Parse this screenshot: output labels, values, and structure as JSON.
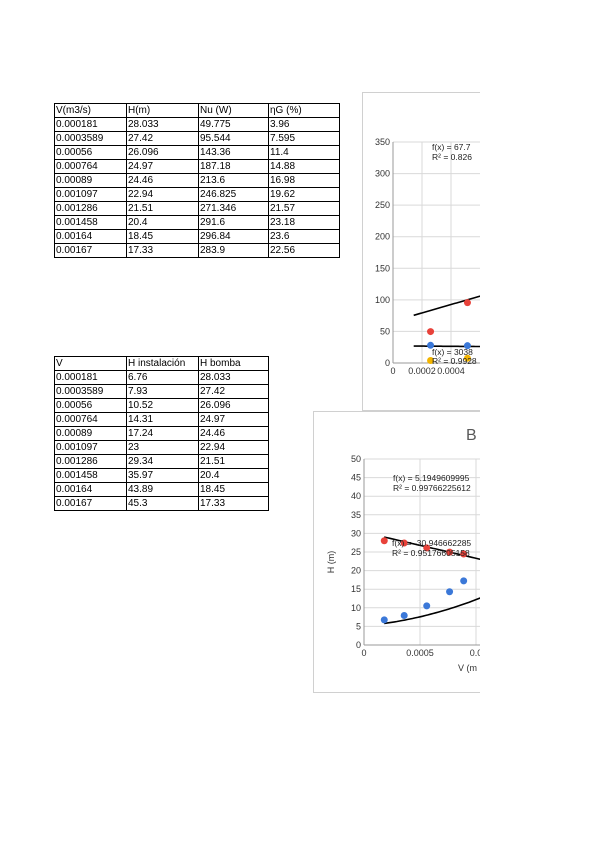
{
  "table_power": {
    "headers": [
      "V(m3/s)",
      "H(m)",
      "Nu (W)",
      "ηG (%)"
    ],
    "rows": [
      [
        "0.000181",
        "28.033",
        "49.775",
        "3.96"
      ],
      [
        "0.0003589",
        "27.42",
        "95.544",
        "7.595"
      ],
      [
        "0.00056",
        "26.096",
        "143.36",
        "11.4"
      ],
      [
        "0.000764",
        "24.97",
        "187.18",
        "14.88"
      ],
      [
        "0.00089",
        "24.46",
        "213.6",
        "16.98"
      ],
      [
        "0.001097",
        "22.94",
        "246.825",
        "19.62"
      ],
      [
        "0.001286",
        "21.51",
        "271.346",
        "21.57"
      ],
      [
        "0.001458",
        "20.4",
        "291.6",
        "23.18"
      ],
      [
        "0.00164",
        "18.45",
        "296.84",
        "23.6"
      ],
      [
        "0.00167",
        "17.33",
        "283.9",
        "22.56"
      ]
    ]
  },
  "table_heads": {
    "headers": [
      "V",
      "H instalación",
      "H bomba"
    ],
    "rows": [
      [
        "0.000181",
        "6.76",
        "28.033"
      ],
      [
        "0.0003589",
        "7.93",
        "27.42"
      ],
      [
        "0.00056",
        "10.52",
        "26.096"
      ],
      [
        "0.000764",
        "14.31",
        "24.97"
      ],
      [
        "0.00089",
        "17.24",
        "24.46"
      ],
      [
        "0.001097",
        "23",
        "22.94"
      ],
      [
        "0.001286",
        "29.34",
        "21.51"
      ],
      [
        "0.001458",
        "35.97",
        "20.4"
      ],
      [
        "0.00164",
        "43.89",
        "18.45"
      ],
      [
        "0.00167",
        "45.3",
        "17.33"
      ]
    ]
  },
  "chart_data": [
    {
      "type": "scatter",
      "ylim": [
        0,
        350
      ],
      "yticks": [
        "350",
        "300",
        "250",
        "200",
        "150",
        "100",
        "50",
        "0"
      ],
      "xticks": [
        "0",
        "0.0002",
        "0.0004"
      ],
      "annotations": [
        "f(x) = 67.7",
        "R² = 0.826",
        "f(x) = 3038",
        "R² = 0.9928"
      ],
      "series": [
        {
          "color": "#e8423a",
          "x": [
            0.000181,
            0.0003589
          ],
          "y": [
            49.775,
            95.544
          ]
        },
        {
          "color": "#3b78d8",
          "x": [
            0.000181,
            0.0003589
          ],
          "y": [
            28.033,
            27.42
          ]
        },
        {
          "color": "#f2b400",
          "x": [
            0.000181,
            0.0003589
          ],
          "y": [
            3.96,
            7.595
          ]
        }
      ]
    },
    {
      "type": "scatter",
      "title": "B",
      "ylabel": "H (m)",
      "xlabel": "V (m",
      "ylim": [
        0,
        50
      ],
      "yticks": [
        "50",
        "45",
        "40",
        "35",
        "30",
        "25",
        "20",
        "15",
        "10",
        "5",
        "0"
      ],
      "xticks": [
        "0",
        "0.0005",
        "0.0"
      ],
      "annotations": [
        "f(x) = 5.1949609995",
        "R² = 0.99766225612",
        "f(x) = -30.946662285",
        "R² = 0.95176605158"
      ],
      "series": [
        {
          "color": "#3b78d8",
          "x": [
            0.000181,
            0.0003589,
            0.00056,
            0.000764,
            0.00089,
            0.001097
          ],
          "y": [
            6.76,
            7.93,
            10.52,
            14.31,
            17.24,
            23
          ]
        },
        {
          "color": "#e8423a",
          "x": [
            0.000181,
            0.0003589,
            0.00056,
            0.000764,
            0.00089,
            0.001097
          ],
          "y": [
            28.033,
            27.42,
            26.096,
            24.97,
            24.46,
            22.94
          ]
        }
      ]
    }
  ]
}
